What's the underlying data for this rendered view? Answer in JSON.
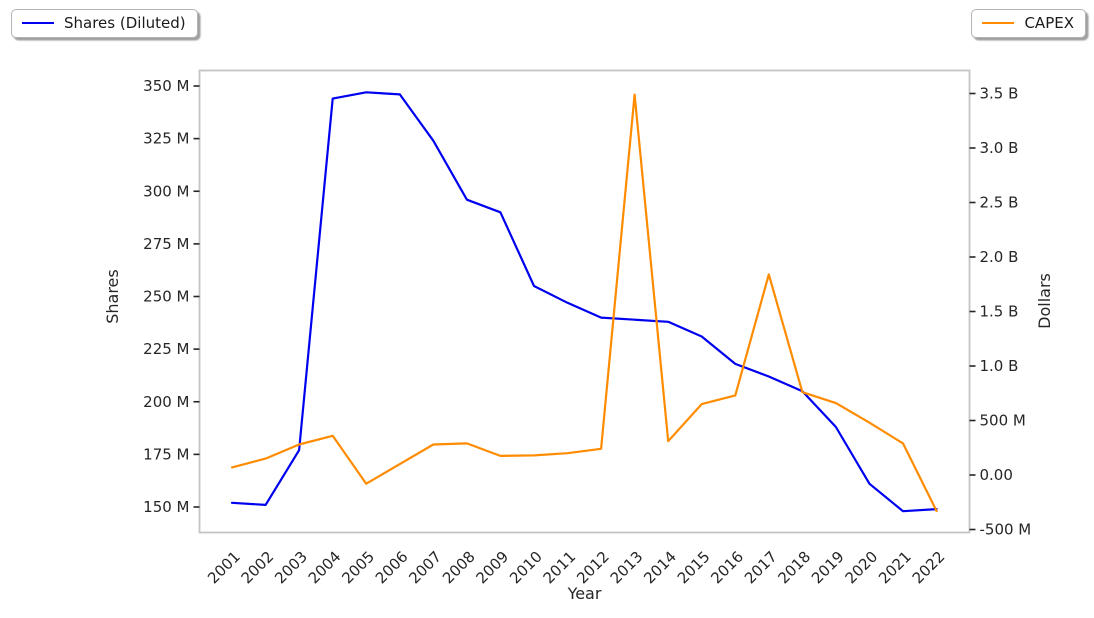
{
  "legend_left": {
    "label": "Shares (Diluted)",
    "color": "#0000f0"
  },
  "legend_right": {
    "label": "CAPEX",
    "color": "#ff8c00"
  },
  "chart_data": {
    "type": "line",
    "title": "",
    "xlabel": "Year",
    "x": [
      2001,
      2002,
      2003,
      2004,
      2005,
      2006,
      2007,
      2008,
      2009,
      2010,
      2011,
      2012,
      2013,
      2014,
      2015,
      2016,
      2017,
      2018,
      2019,
      2020,
      2021,
      2022
    ],
    "series": [
      {
        "name": "Shares (Diluted)",
        "yaxis": "left",
        "color": "#0000f0",
        "unit": "shares (millions)",
        "values_millions": [
          152,
          151,
          177,
          344,
          347,
          346,
          324,
          296,
          290,
          255,
          247,
          240,
          239,
          238,
          231,
          218,
          212,
          205,
          188,
          161,
          148,
          149
        ]
      },
      {
        "name": "CAPEX",
        "yaxis": "right",
        "color": "#ff8c00",
        "unit": "USD (millions)",
        "values_millions": [
          70,
          150,
          280,
          360,
          -80,
          100,
          280,
          290,
          175,
          180,
          200,
          240,
          3490,
          310,
          650,
          730,
          1840,
          760,
          660,
          480,
          290,
          -330
        ]
      }
    ],
    "left_axis": {
      "label": "Shares",
      "tick_labels": [
        "150 M",
        "175 M",
        "200 M",
        "225 M",
        "250 M",
        "275 M",
        "300 M",
        "325 M",
        "350 M"
      ],
      "tick_values_millions": [
        150,
        175,
        200,
        225,
        250,
        275,
        300,
        325,
        350
      ]
    },
    "right_axis": {
      "label": "Dollars",
      "tick_labels": [
        "-500 M",
        "0.00",
        "500 M",
        "1.0 B",
        "1.5 B",
        "2.0 B",
        "2.5 B",
        "3.0 B",
        "3.5 B"
      ],
      "tick_values_millions": [
        -500,
        0,
        500,
        1000,
        1500,
        2000,
        2500,
        3000,
        3500
      ]
    },
    "grid": false,
    "legend_position": "outside top-left and outside top-right"
  }
}
